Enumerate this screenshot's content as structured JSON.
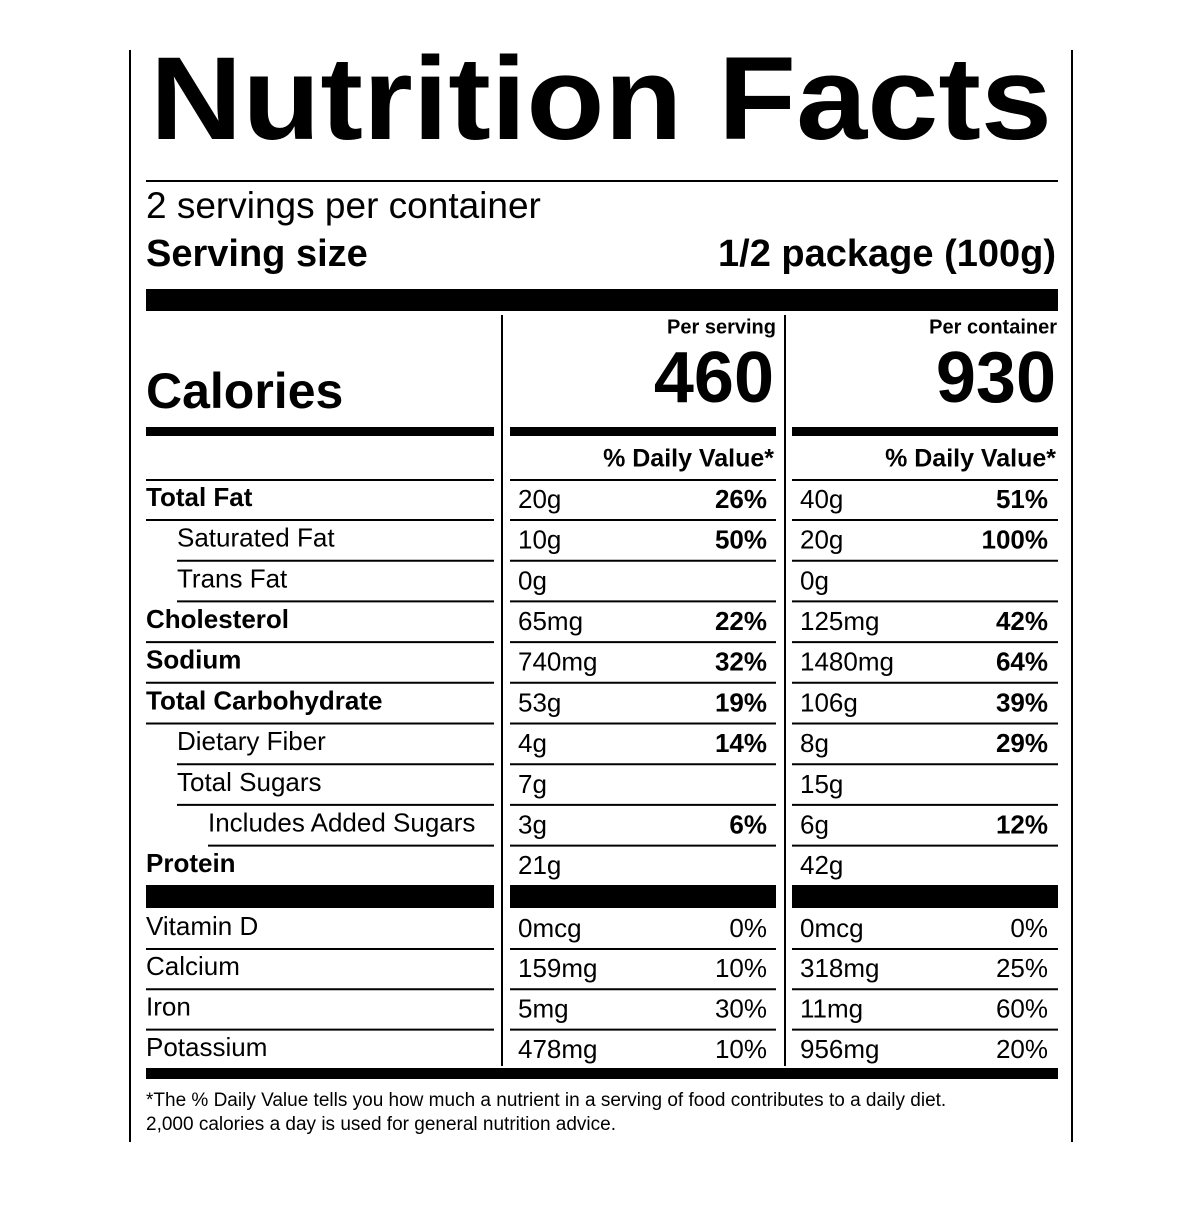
{
  "title": "Nutrition Facts",
  "servings_per_container": "2 servings per container",
  "serving_size": {
    "label": "Serving size",
    "value": "1/2 package (100g)"
  },
  "columns": [
    "Per serving",
    "Per container"
  ],
  "calories": {
    "label": "Calories",
    "per_serving": "460",
    "per_container": "930"
  },
  "daily_value_header": [
    "% Daily Value*",
    "% Daily Value*"
  ],
  "nutrients": [
    {
      "name": "Total Fat",
      "bold": true,
      "indent": 0,
      "serving_amount": "20g",
      "serving_dv": "26%",
      "container_amount": "40g",
      "container_dv": "51%"
    },
    {
      "name": "Saturated Fat",
      "bold": false,
      "indent": 1,
      "serving_amount": "10g",
      "serving_dv": "50%",
      "container_amount": "20g",
      "container_dv": "100%"
    },
    {
      "name": "Trans Fat",
      "bold": false,
      "indent": 1,
      "serving_amount": "0g",
      "container_amount": "0g"
    },
    {
      "name": "Cholesterol",
      "bold": true,
      "indent": 0,
      "serving_amount": "65mg",
      "serving_dv": "22%",
      "container_amount": "125mg",
      "container_dv": "42%"
    },
    {
      "name": "Sodium",
      "bold": true,
      "indent": 0,
      "serving_amount": "740mg",
      "serving_dv": "32%",
      "container_amount": "1480mg",
      "container_dv": "64%"
    },
    {
      "name": "Total Carbohydrate",
      "bold": true,
      "indent": 0,
      "serving_amount": "53g",
      "serving_dv": "19%",
      "container_amount": "106g",
      "container_dv": "39%"
    },
    {
      "name": "Dietary Fiber",
      "bold": false,
      "indent": 1,
      "serving_amount": "4g",
      "serving_dv": "14%",
      "container_amount": "8g",
      "container_dv": "29%"
    },
    {
      "name": "Total Sugars",
      "bold": false,
      "indent": 1,
      "serving_amount": "7g",
      "container_amount": "15g"
    },
    {
      "name": "Includes Added Sugars",
      "bold": false,
      "indent": 2,
      "serving_amount": "3g",
      "serving_dv": "6%",
      "container_amount": "6g",
      "container_dv": "12%"
    },
    {
      "name": "Protein",
      "bold": true,
      "indent": 0,
      "serving_amount": "21g",
      "container_amount": "42g"
    }
  ],
  "vitamins": [
    {
      "name": "Vitamin D",
      "serving_amount": "0mcg",
      "serving_dv": "0%",
      "container_amount": "0mcg",
      "container_dv": "0%"
    },
    {
      "name": "Calcium",
      "serving_amount": "159mg",
      "serving_dv": "10%",
      "container_amount": "318mg",
      "container_dv": "25%"
    },
    {
      "name": "Iron",
      "serving_amount": "5mg",
      "serving_dv": "30%",
      "container_amount": "11mg",
      "container_dv": "60%"
    },
    {
      "name": "Potassium",
      "serving_amount": "478mg",
      "serving_dv": "10%",
      "container_amount": "956mg",
      "container_dv": "20%"
    }
  ],
  "footnote": [
    "*The % Daily Value tells you how much a nutrient in a serving of food contributes to a daily diet.",
    "2,000 calories a day is used for general nutrition advice."
  ]
}
